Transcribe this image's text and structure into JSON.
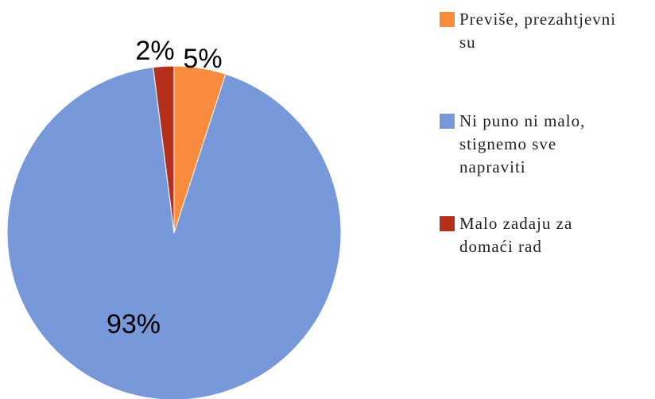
{
  "chart_data": {
    "type": "pie",
    "categories": [
      "Previše, prezahtjevni su",
      "Ni puno ni malo, stignemo sve napraviti",
      "Malo zadaju za domaći rad"
    ],
    "values": [
      5,
      93,
      2
    ],
    "value_labels": [
      "5%",
      "93%",
      "2%"
    ],
    "colors": [
      "#f98b3e",
      "#7799d9",
      "#b5301c"
    ],
    "legend": "right"
  }
}
